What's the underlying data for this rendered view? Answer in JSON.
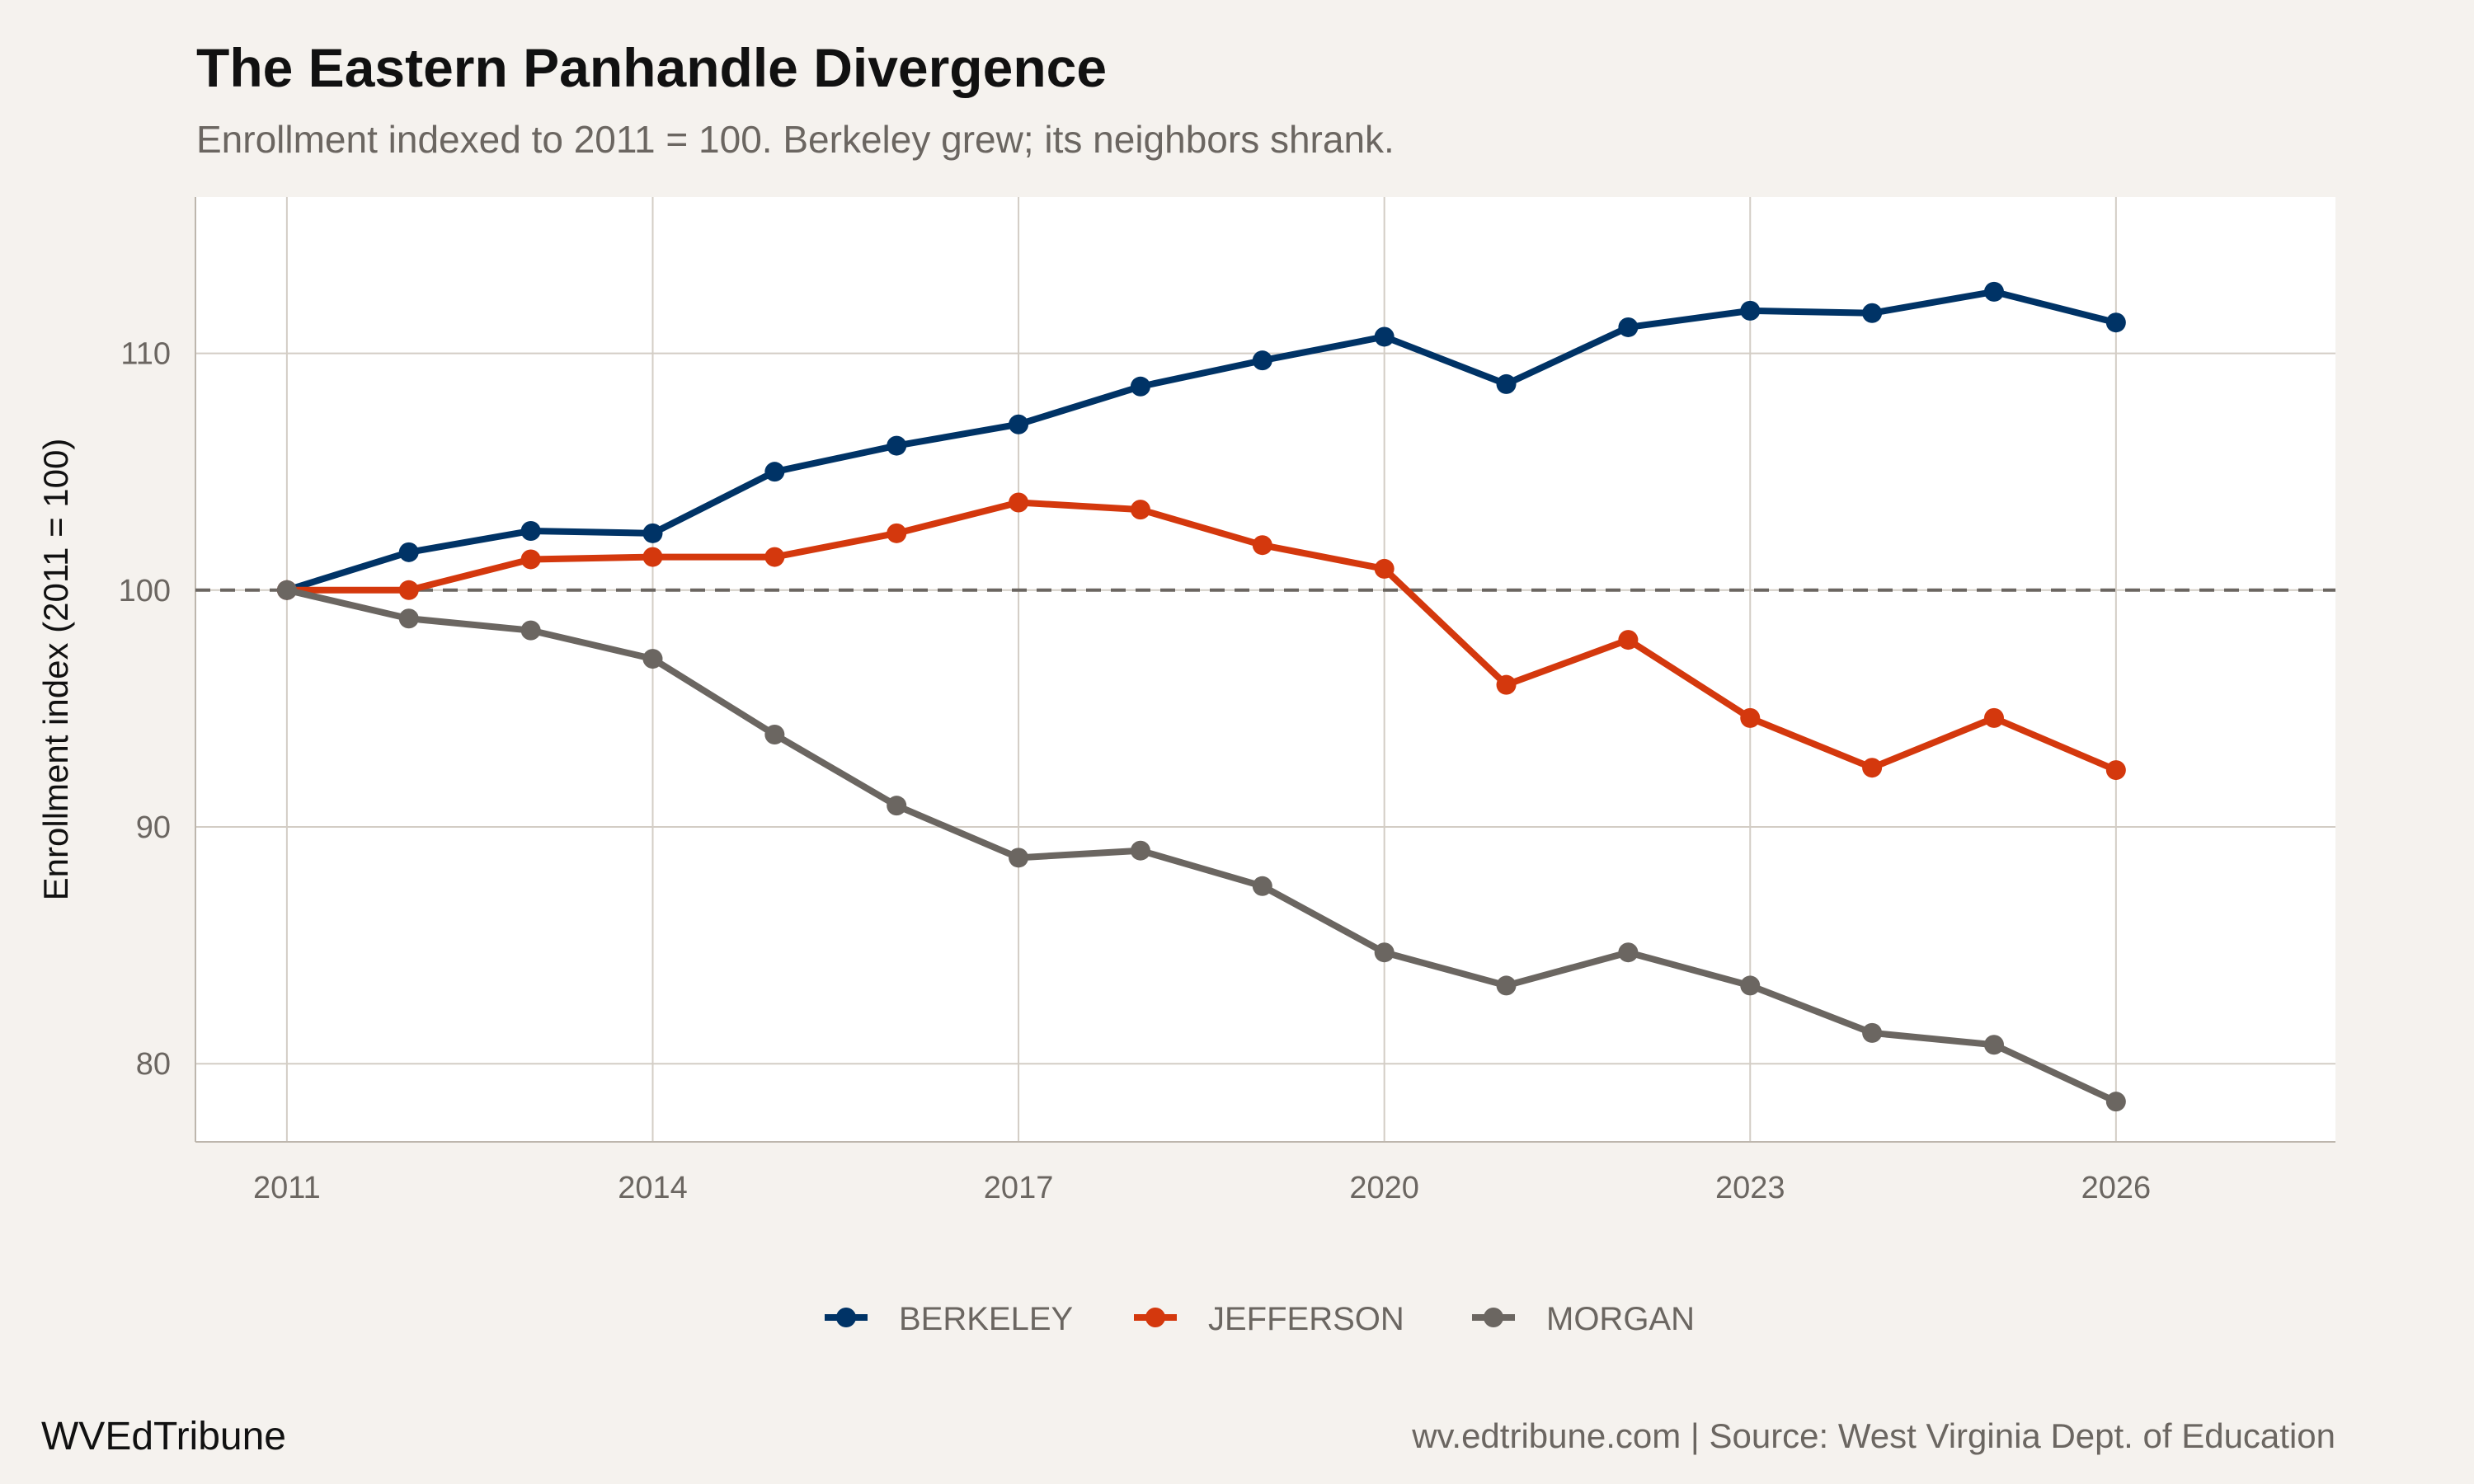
{
  "title": "The Eastern Panhandle Divergence",
  "subtitle": "Enrollment indexed to 2011 = 100. Berkeley grew; its neighbors shrank.",
  "footer": {
    "brand": "WVEdTribune",
    "source": "wv.edtribune.com | Source: West Virginia Dept. of Education"
  },
  "chart_data": {
    "type": "line",
    "title": "The Eastern Panhandle Divergence",
    "ylabel": "Enrollment index (2011 = 100)",
    "xlabel": "",
    "x": [
      2011,
      2012,
      2013,
      2014,
      2015,
      2016,
      2017,
      2018,
      2019,
      2020,
      2021,
      2022,
      2023,
      2024,
      2025,
      2026
    ],
    "xlim": [
      2010.25,
      2027.8
    ],
    "ylim": [
      76.7,
      116.6
    ],
    "xticks": [
      2011,
      2014,
      2017,
      2020,
      2023,
      2026
    ],
    "yticks": [
      80,
      90,
      100,
      110
    ],
    "grid": true,
    "reference_line": {
      "y": 100,
      "style": "dashed",
      "color": "#6b6661"
    },
    "legend_placement": "bottom",
    "series": [
      {
        "name": "BERKELEY",
        "color": "#003366",
        "values": [
          100,
          101.6,
          102.5,
          102.4,
          105.0,
          106.1,
          107.0,
          108.6,
          109.7,
          110.7,
          108.7,
          111.1,
          111.8,
          111.7,
          112.6,
          111.3
        ]
      },
      {
        "name": "JEFFERSON",
        "color": "#d4380d",
        "values": [
          100,
          100.0,
          101.3,
          101.4,
          101.4,
          102.4,
          103.7,
          103.4,
          101.9,
          100.9,
          96.0,
          97.9,
          94.6,
          92.5,
          94.6,
          92.4
        ]
      },
      {
        "name": "MORGAN",
        "color": "#6b6661",
        "values": [
          100,
          98.8,
          98.3,
          97.1,
          93.9,
          90.9,
          88.7,
          89.0,
          87.5,
          84.7,
          83.3,
          84.7,
          83.3,
          81.3,
          80.8,
          78.4
        ]
      }
    ]
  }
}
